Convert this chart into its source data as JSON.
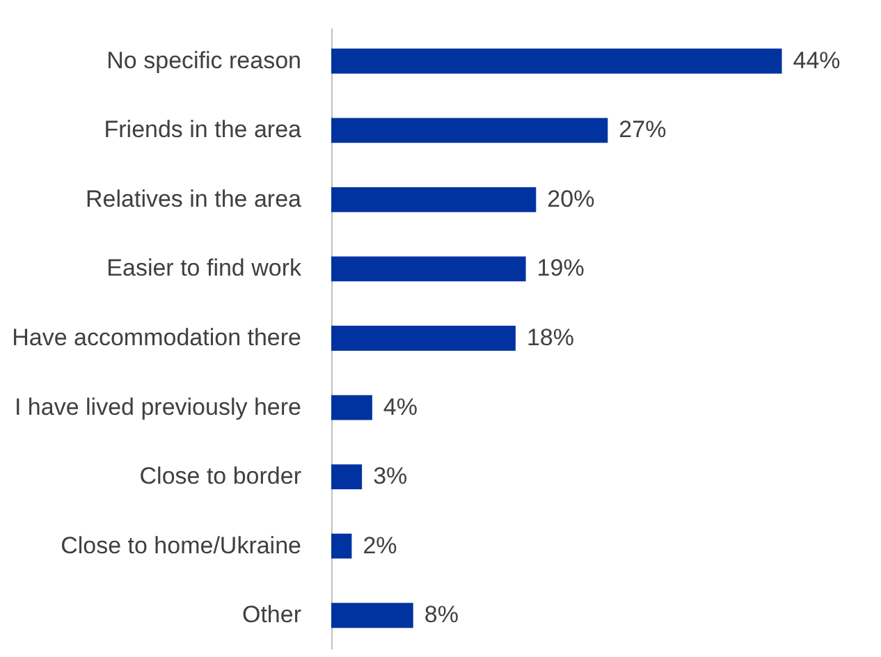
{
  "chart_data": {
    "type": "bar",
    "orientation": "horizontal",
    "categories": [
      "No specific reason",
      "Friends in the area",
      "Relatives in the area",
      "Easier to find work",
      "Have accommodation there",
      "I have lived previously here",
      "Close to border",
      "Close to home/Ukraine",
      "Other"
    ],
    "values": [
      44,
      27,
      20,
      19,
      18,
      4,
      3,
      2,
      8
    ],
    "value_labels": [
      "44%",
      "27%",
      "20%",
      "19%",
      "18%",
      "4%",
      "3%",
      "2%",
      "8%"
    ],
    "color": "#0033a0"
  }
}
